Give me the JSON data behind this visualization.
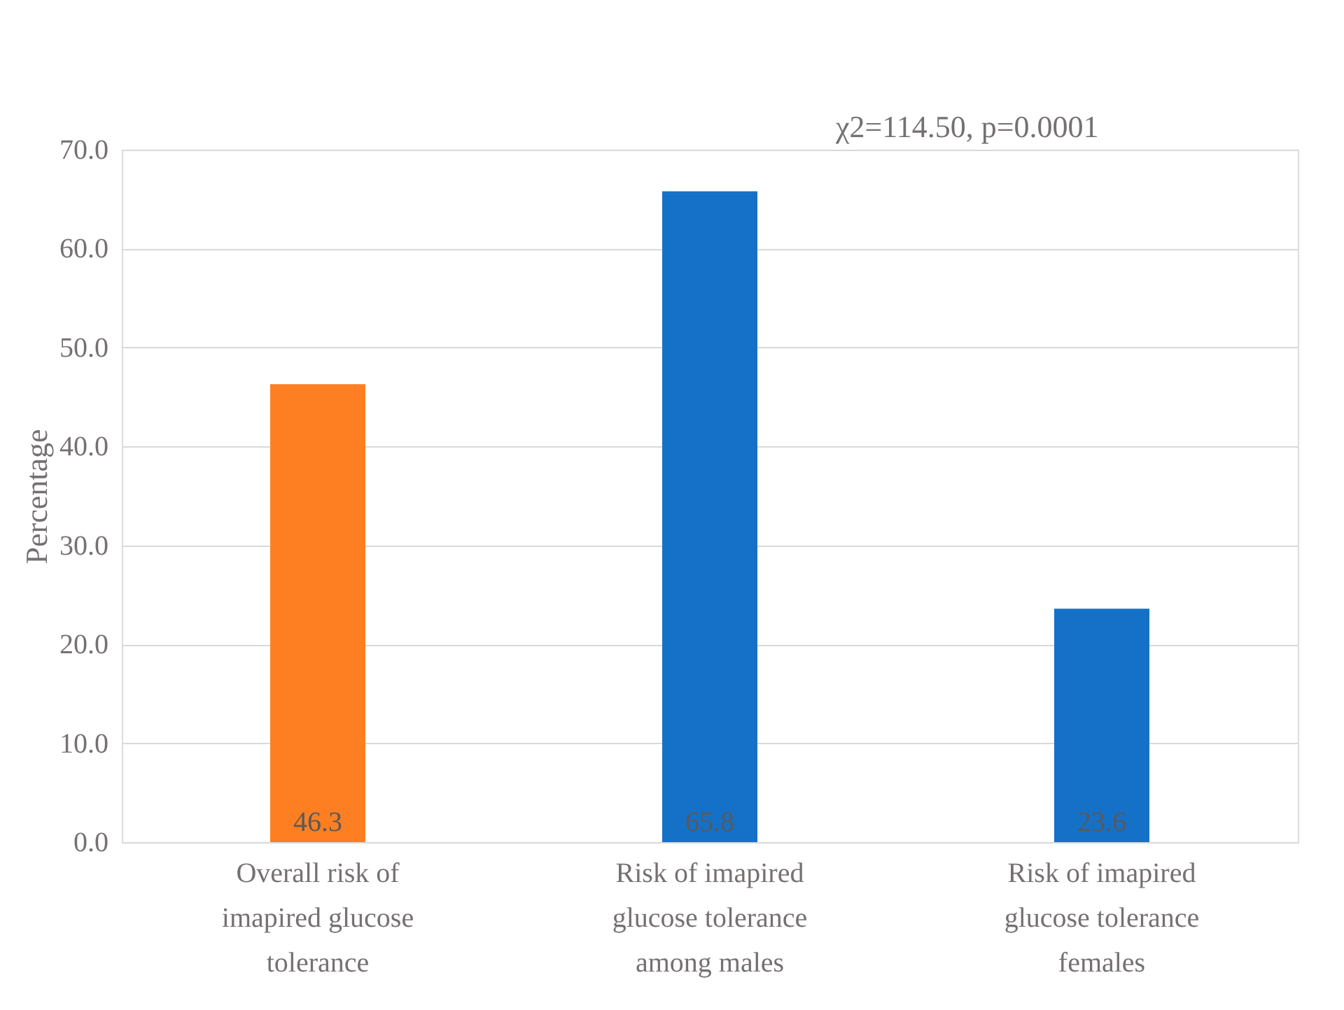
{
  "chart_data": {
    "type": "bar",
    "categories": [
      "Overall risk of imapired glucose tolerance",
      "Risk of imapired glucose tolerance among males",
      "Risk of imapired glucose tolerance females"
    ],
    "values": [
      46.3,
      65.8,
      23.6
    ],
    "colors": [
      "#fe7f22",
      "#1571c8",
      "#1571c8"
    ],
    "ylabel": "Percentage",
    "ylim": [
      0,
      70
    ],
    "yticks": [
      {
        "value": 0,
        "label": "0.0"
      },
      {
        "value": 10,
        "label": "10.0"
      },
      {
        "value": 20,
        "label": "20.0"
      },
      {
        "value": 30,
        "label": "30.0"
      },
      {
        "value": 40,
        "label": "40.0"
      },
      {
        "value": 50,
        "label": "50.0"
      },
      {
        "value": 60,
        "label": "60.0"
      },
      {
        "value": 70,
        "label": "70.0"
      }
    ],
    "grid": "y",
    "data_labels": true,
    "annotations": [
      "χ2=114.50, p=0.0001"
    ]
  }
}
